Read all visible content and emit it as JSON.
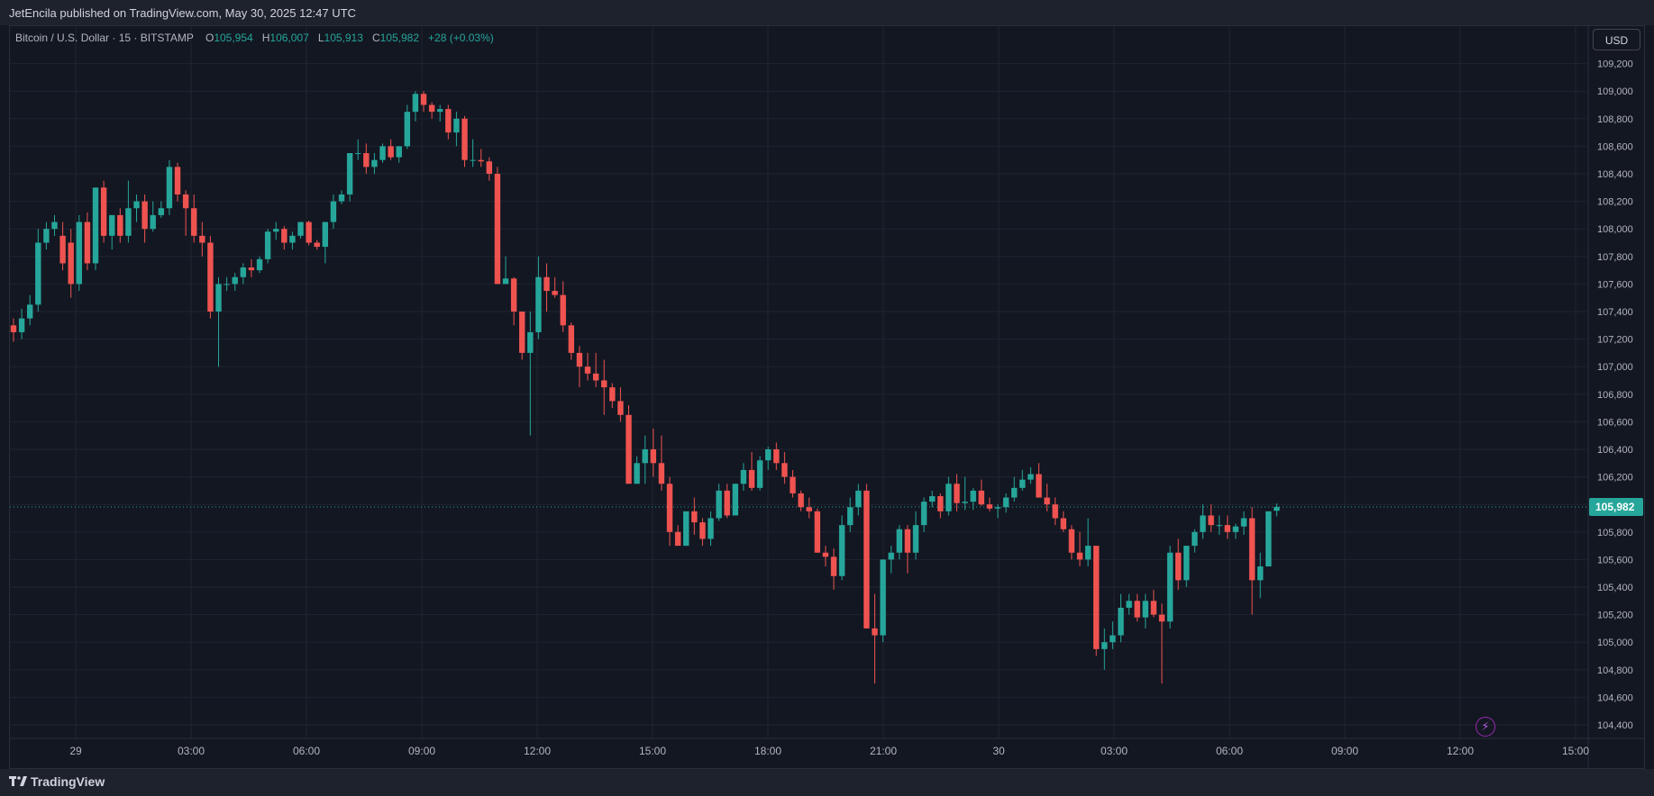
{
  "header": {
    "publisher_text": "JetEncila published on TradingView.com, May 30, 2025 12:47 UTC"
  },
  "legend": {
    "symbol": "Bitcoin / U.S. Dollar · 15 · BITSTAMP",
    "open_label": "O",
    "open": "105,954",
    "high_label": "H",
    "high": "106,007",
    "low_label": "L",
    "low": "105,913",
    "close_label": "C",
    "close": "105,982",
    "change": "+28 (+0.03%)"
  },
  "currency_button": "USD",
  "footer": {
    "brand": "TradingView"
  },
  "colors": {
    "background": "#131722",
    "up": "#26a69a",
    "down": "#ef5350",
    "grid": "#1f2430",
    "text": "#b2b5be"
  },
  "icons": [
    "tradingview-logo-icon",
    "lightning-icon"
  ],
  "chart_data": {
    "type": "candlestick",
    "title": "Bitcoin / U.S. Dollar · 15 · BITSTAMP",
    "interval": "15",
    "y_ticks": [
      104400,
      104600,
      104800,
      105000,
      105200,
      105400,
      105600,
      105800,
      106000,
      106200,
      106400,
      106600,
      106800,
      107000,
      107200,
      107400,
      107600,
      107800,
      108000,
      108200,
      108400,
      108600,
      108800,
      109000,
      109200
    ],
    "ylim": [
      104300,
      109300
    ],
    "x_tick_labels": [
      "29",
      "03:00",
      "06:00",
      "09:00",
      "12:00",
      "15:00",
      "18:00",
      "21:00",
      "30",
      "03:00",
      "06:00",
      "09:00",
      "12:00",
      "15:00"
    ],
    "last_price": "105,982",
    "last_price_value": 105982,
    "grid": true,
    "candles": [
      [
        107300,
        107350,
        107180,
        107250
      ],
      [
        107250,
        107420,
        107200,
        107350
      ],
      [
        107350,
        107520,
        107300,
        107450
      ],
      [
        107450,
        108000,
        107400,
        107900
      ],
      [
        107900,
        108050,
        107850,
        108000
      ],
      [
        108000,
        108100,
        107950,
        108050
      ],
      [
        107950,
        108050,
        107700,
        107750
      ],
      [
        107900,
        108000,
        107500,
        107600
      ],
      [
        107600,
        108100,
        107550,
        108050
      ],
      [
        108050,
        108120,
        107700,
        107750
      ],
      [
        107750,
        108300,
        107700,
        108300
      ],
      [
        108300,
        108350,
        107900,
        107950
      ],
      [
        107950,
        108100,
        107850,
        108100
      ],
      [
        108100,
        108150,
        107900,
        107950
      ],
      [
        107950,
        108350,
        107900,
        108150
      ],
      [
        108150,
        108250,
        108050,
        108200
      ],
      [
        108200,
        108250,
        107900,
        108000
      ],
      [
        108000,
        108200,
        107980,
        108100
      ],
      [
        108100,
        108200,
        108080,
        108150
      ],
      [
        108150,
        108500,
        108100,
        108450
      ],
      [
        108450,
        108480,
        108200,
        108250
      ],
      [
        108250,
        108280,
        107950,
        108150
      ],
      [
        108150,
        108250,
        107900,
        107950
      ],
      [
        107950,
        108050,
        107800,
        107900
      ],
      [
        107900,
        107950,
        107350,
        107400
      ],
      [
        107400,
        107650,
        107000,
        107600
      ],
      [
        107600,
        107650,
        107550,
        107600
      ],
      [
        107600,
        107680,
        107550,
        107650
      ],
      [
        107650,
        107750,
        107600,
        107720
      ],
      [
        107720,
        107780,
        107650,
        107700
      ],
      [
        107700,
        107800,
        107680,
        107780
      ],
      [
        107780,
        108000,
        107750,
        107980
      ],
      [
        107980,
        108050,
        107920,
        108000
      ],
      [
        108000,
        108020,
        107850,
        107900
      ],
      [
        107900,
        107980,
        107850,
        107950
      ],
      [
        107950,
        108050,
        107930,
        108050
      ],
      [
        108050,
        108060,
        107880,
        107900
      ],
      [
        107900,
        107920,
        107850,
        107870
      ],
      [
        107870,
        108050,
        107750,
        108050
      ],
      [
        108050,
        108250,
        108000,
        108200
      ],
      [
        108200,
        108280,
        108180,
        108250
      ],
      [
        108250,
        108550,
        108200,
        108550
      ],
      [
        108550,
        108650,
        108500,
        108550
      ],
      [
        108550,
        108620,
        108400,
        108450
      ],
      [
        108450,
        108550,
        108400,
        108500
      ],
      [
        108500,
        108620,
        108480,
        108600
      ],
      [
        108600,
        108650,
        108500,
        108520
      ],
      [
        108520,
        108600,
        108480,
        108600
      ],
      [
        108600,
        108900,
        108580,
        108850
      ],
      [
        108850,
        109000,
        108780,
        108980
      ],
      [
        108980,
        109000,
        108850,
        108900
      ],
      [
        108900,
        108920,
        108800,
        108850
      ],
      [
        108850,
        108900,
        108780,
        108870
      ],
      [
        108870,
        108900,
        108650,
        108700
      ],
      [
        108700,
        108850,
        108600,
        108800
      ],
      [
        108800,
        108820,
        108450,
        108500
      ],
      [
        108500,
        108650,
        108450,
        108500
      ],
      [
        108500,
        108580,
        108450,
        108490
      ],
      [
        108490,
        108520,
        108350,
        108400
      ],
      [
        108400,
        108450,
        107600,
        107600
      ],
      [
        107600,
        107800,
        107600,
        107640
      ],
      [
        107640,
        107650,
        107300,
        107400
      ],
      [
        107400,
        107400,
        107050,
        107100
      ],
      [
        107100,
        107400,
        106500,
        107250
      ],
      [
        107250,
        107800,
        107200,
        107650
      ],
      [
        107650,
        107750,
        107400,
        107550
      ],
      [
        107550,
        107650,
        107500,
        107520
      ],
      [
        107520,
        107620,
        107250,
        107300
      ],
      [
        107300,
        107320,
        107050,
        107100
      ],
      [
        107100,
        107150,
        106850,
        107000
      ],
      [
        107000,
        107100,
        106900,
        106950
      ],
      [
        106950,
        107100,
        106850,
        106900
      ],
      [
        106900,
        107050,
        106650,
        106850
      ],
      [
        106850,
        106880,
        106700,
        106750
      ],
      [
        106750,
        106850,
        106600,
        106650
      ],
      [
        106650,
        106720,
        106150,
        106150
      ],
      [
        106150,
        106350,
        106150,
        106300
      ],
      [
        106300,
        106500,
        106150,
        106400
      ],
      [
        106400,
        106550,
        106200,
        106300
      ],
      [
        106300,
        106500,
        106100,
        106150
      ],
      [
        106150,
        106200,
        105700,
        105800
      ],
      [
        105800,
        105850,
        105700,
        105700
      ],
      [
        105700,
        105900,
        105700,
        105950
      ],
      [
        105950,
        106050,
        105780,
        105870
      ],
      [
        105870,
        105900,
        105700,
        105750
      ],
      [
        105750,
        105950,
        105700,
        105900
      ],
      [
        105900,
        106150,
        105880,
        106100
      ],
      [
        106100,
        106150,
        105900,
        105920
      ],
      [
        105920,
        106150,
        105920,
        106150
      ],
      [
        106150,
        106300,
        106100,
        106250
      ],
      [
        106250,
        106380,
        106100,
        106120
      ],
      [
        106120,
        106350,
        106100,
        106320
      ],
      [
        106320,
        106420,
        106250,
        106400
      ],
      [
        106400,
        106450,
        106250,
        106300
      ],
      [
        106300,
        106380,
        106150,
        106200
      ],
      [
        106200,
        106250,
        106050,
        106080
      ],
      [
        106080,
        106100,
        105950,
        105980
      ],
      [
        105980,
        106050,
        105900,
        105950
      ],
      [
        105950,
        105970,
        105650,
        105650
      ],
      [
        105650,
        105700,
        105550,
        105620
      ],
      [
        105620,
        105680,
        105380,
        105480
      ],
      [
        105480,
        105920,
        105450,
        105850
      ],
      [
        105850,
        106050,
        105800,
        105980
      ],
      [
        105980,
        106150,
        105920,
        106100
      ],
      [
        106100,
        106150,
        105150,
        105100
      ],
      [
        105100,
        105350,
        104700,
        105050
      ],
      [
        105050,
        105600,
        105000,
        105600
      ],
      [
        105600,
        105700,
        105500,
        105650
      ],
      [
        105650,
        105850,
        105600,
        105820
      ],
      [
        105820,
        105850,
        105500,
        105650
      ],
      [
        105650,
        105950,
        105600,
        105850
      ],
      [
        105850,
        106050,
        105800,
        106020
      ],
      [
        106020,
        106100,
        105980,
        106060
      ],
      [
        106060,
        106080,
        105900,
        105950
      ],
      [
        105950,
        106200,
        105920,
        106150
      ],
      [
        106150,
        106220,
        105950,
        106010
      ],
      [
        106010,
        106200,
        105960,
        106020
      ],
      [
        106020,
        106120,
        105960,
        106100
      ],
      [
        106100,
        106180,
        105990,
        106000
      ],
      [
        106000,
        106050,
        105950,
        105970
      ],
      [
        105970,
        106000,
        105900,
        105980
      ],
      [
        105980,
        106080,
        105940,
        106050
      ],
      [
        106050,
        106200,
        106020,
        106120
      ],
      [
        106120,
        106250,
        106100,
        106180
      ],
      [
        106180,
        106270,
        106150,
        106220
      ],
      [
        106220,
        106300,
        106100,
        106050
      ],
      [
        106050,
        106150,
        105950,
        106000
      ],
      [
        106000,
        106050,
        105850,
        105900
      ],
      [
        105900,
        105950,
        105800,
        105820
      ],
      [
        105820,
        105850,
        105600,
        105650
      ],
      [
        105650,
        105800,
        105550,
        105600
      ],
      [
        105600,
        105900,
        105550,
        105700
      ],
      [
        105700,
        105700,
        104900,
        104950
      ],
      [
        104950,
        105100,
        104800,
        105000
      ],
      [
        105000,
        105150,
        104950,
        105050
      ],
      [
        105050,
        105350,
        105000,
        105250
      ],
      [
        105250,
        105350,
        105200,
        105300
      ],
      [
        105300,
        105350,
        105150,
        105180
      ],
      [
        105180,
        105350,
        105100,
        105300
      ],
      [
        105300,
        105380,
        105180,
        105200
      ],
      [
        105200,
        105280,
        104700,
        105150
      ],
      [
        105150,
        105700,
        105100,
        105650
      ],
      [
        105650,
        105750,
        105380,
        105450
      ],
      [
        105450,
        105700,
        105400,
        105700
      ],
      [
        105700,
        105820,
        105650,
        105800
      ],
      [
        105800,
        106000,
        105750,
        105920
      ],
      [
        105920,
        106000,
        105800,
        105850
      ],
      [
        105850,
        105920,
        105780,
        105850
      ],
      [
        105850,
        105920,
        105750,
        105800
      ],
      [
        105800,
        105860,
        105750,
        105840
      ],
      [
        105840,
        105950,
        105780,
        105900
      ],
      [
        105900,
        105980,
        105200,
        105450
      ],
      [
        105450,
        105650,
        105320,
        105550
      ],
      [
        105550,
        105950,
        105550,
        105950
      ],
      [
        105954,
        106007,
        105913,
        105982
      ]
    ]
  }
}
